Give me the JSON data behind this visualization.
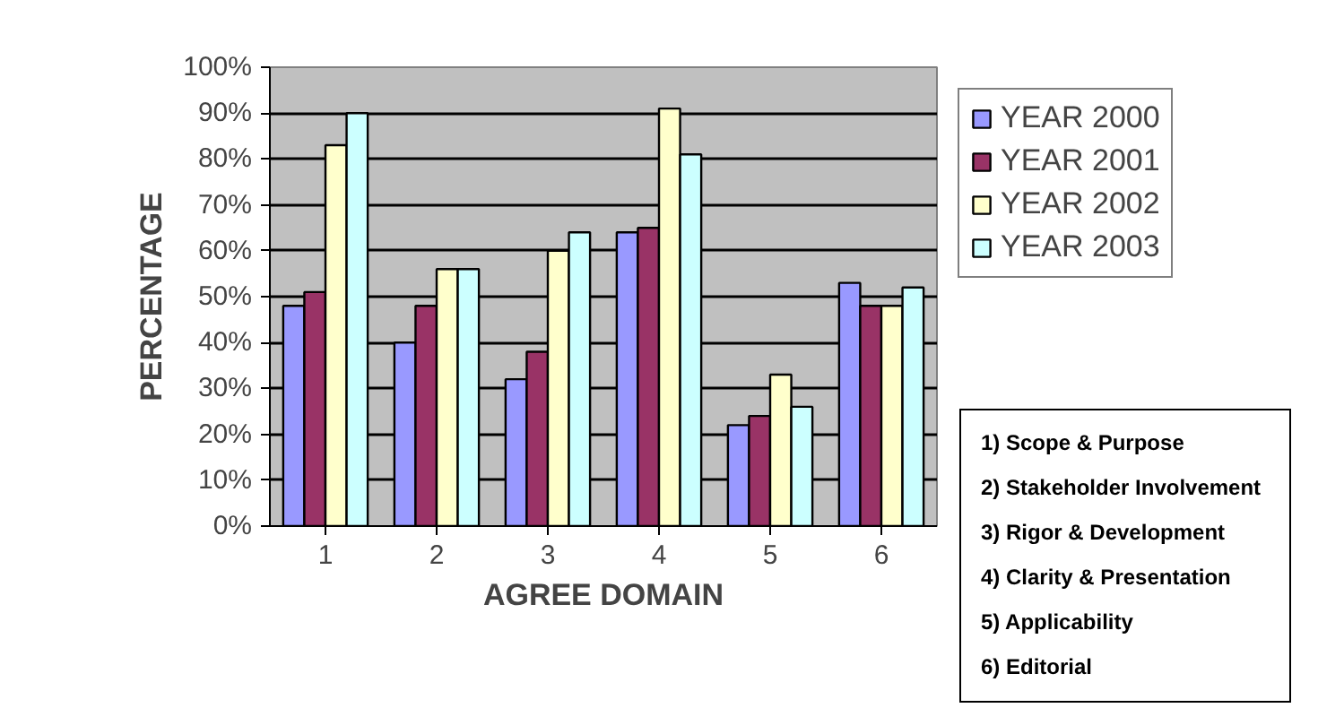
{
  "chart_data": {
    "type": "bar",
    "categories": [
      "1",
      "2",
      "3",
      "4",
      "5",
      "6"
    ],
    "xlabel": "AGREE DOMAIN",
    "ylabel": "PERCENTAGE",
    "series": [
      {
        "name": "YEAR 2000",
        "color": "#9999ff",
        "values": [
          48,
          40,
          32,
          64,
          22,
          53
        ]
      },
      {
        "name": "YEAR 2001",
        "color": "#993366",
        "values": [
          51,
          48,
          38,
          65,
          24,
          48
        ]
      },
      {
        "name": "YEAR 2002",
        "color": "#ffffcc",
        "values": [
          83,
          56,
          60,
          91,
          33,
          48
        ]
      },
      {
        "name": "YEAR 2003",
        "color": "#ccffff",
        "values": [
          90,
          56,
          64,
          81,
          26,
          52
        ]
      }
    ],
    "ylim": [
      0,
      100
    ],
    "yticks": [
      {
        "value": 0,
        "label": "0%"
      },
      {
        "value": 10,
        "label": "10%"
      },
      {
        "value": 20,
        "label": "20%"
      },
      {
        "value": 30,
        "label": "30%"
      },
      {
        "value": 40,
        "label": "40%"
      },
      {
        "value": 50,
        "label": "50%"
      },
      {
        "value": 60,
        "label": "60%"
      },
      {
        "value": 70,
        "label": "70%"
      },
      {
        "value": 80,
        "label": "80%"
      },
      {
        "value": 90,
        "label": "90%"
      },
      {
        "value": 100,
        "label": "100%"
      }
    ],
    "grid": "y",
    "legend": "right",
    "annotations": [
      "1) Scope & Purpose",
      "2) Stakeholder Involvement",
      "3) Rigor & Development",
      "4) Clarity & Presentation",
      "5) Applicability",
      "6) Editorial"
    ]
  }
}
